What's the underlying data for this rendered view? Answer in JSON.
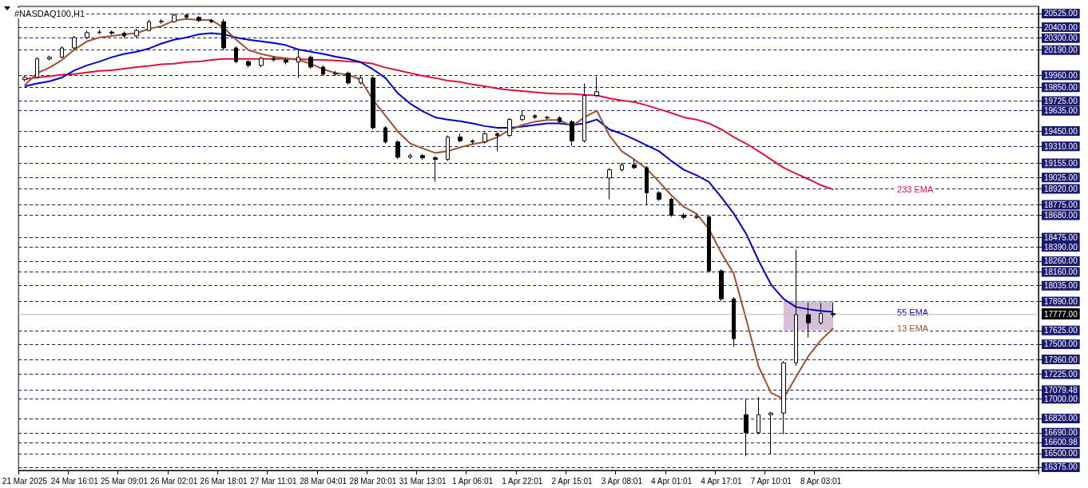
{
  "chart_data": {
    "type": "candlestick",
    "title": "#NASDAQ100,H1",
    "categories": [
      "21 Mar 2025",
      null,
      null,
      null,
      "24 Mar 16:01",
      null,
      null,
      null,
      "25 Mar 09:01",
      null,
      null,
      null,
      "26 Mar 02:01",
      null,
      null,
      null,
      "26 Mar 18:01",
      null,
      null,
      null,
      "27 Mar 11:01",
      null,
      null,
      null,
      "28 Mar 04:01",
      null,
      null,
      null,
      "28 Mar 20:01",
      null,
      null,
      null,
      "31 Mar 13:01",
      null,
      null,
      null,
      "1 Apr 06:01",
      null,
      null,
      null,
      "1 Apr 22:01",
      null,
      null,
      null,
      "2 Apr 15:01",
      null,
      null,
      null,
      "3 Apr 08:01",
      null,
      null,
      null,
      "4 Apr 01:01",
      null,
      null,
      null,
      "4 Apr 17:01",
      null,
      null,
      null,
      "7 Apr 10:01",
      null,
      null,
      null,
      "8 Apr 03:01",
      null,
      null,
      null,
      null,
      null,
      null,
      null,
      null,
      null,
      null,
      null,
      null,
      null,
      null,
      null,
      null,
      null
    ],
    "ohlc": [
      [
        19920,
        19955,
        19905,
        19940
      ],
      [
        19940,
        20125,
        19930,
        20110
      ],
      [
        20110,
        20140,
        20095,
        20125
      ],
      [
        20125,
        20225,
        20115,
        20210
      ],
      [
        20210,
        20320,
        20195,
        20305
      ],
      [
        20305,
        20370,
        20290,
        20350
      ],
      [
        20350,
        20375,
        20335,
        20355
      ],
      [
        20355,
        20370,
        20330,
        20345
      ],
      [
        20345,
        20360,
        20300,
        20320
      ],
      [
        20320,
        20385,
        20305,
        20370
      ],
      [
        20370,
        20470,
        20360,
        20450
      ],
      [
        20450,
        20475,
        20430,
        20455
      ],
      [
        20450,
        20525,
        20440,
        20510
      ],
      [
        20510,
        20520,
        20475,
        20490
      ],
      [
        20490,
        20500,
        20445,
        20460
      ],
      [
        20460,
        20475,
        20435,
        20450
      ],
      [
        20450,
        20475,
        20190,
        20210
      ],
      [
        20210,
        20225,
        20070,
        20085
      ],
      [
        20085,
        20100,
        20030,
        20050
      ],
      [
        20050,
        20130,
        20035,
        20115
      ],
      [
        20115,
        20135,
        20085,
        20100
      ],
      [
        20100,
        20115,
        20060,
        20080
      ],
      [
        20080,
        20195,
        19935,
        20125
      ],
      [
        20125,
        20140,
        20020,
        20035
      ],
      [
        20035,
        20050,
        19955,
        19970
      ],
      [
        19970,
        20000,
        19955,
        19980
      ],
      [
        19980,
        19995,
        19875,
        19890
      ],
      [
        19890,
        19955,
        19875,
        19935
      ],
      [
        19935,
        19950,
        19465,
        19480
      ],
      [
        19480,
        19495,
        19335,
        19350
      ],
      [
        19350,
        19365,
        19195,
        19210
      ],
      [
        19210,
        19245,
        19195,
        19225
      ],
      [
        19225,
        19240,
        19185,
        19205
      ],
      [
        19205,
        19220,
        18985,
        19190
      ],
      [
        19190,
        19410,
        19175,
        19395
      ],
      [
        19395,
        19425,
        19345,
        19360
      ],
      [
        19360,
        19375,
        19330,
        19350
      ],
      [
        19350,
        19440,
        19335,
        19425
      ],
      [
        19425,
        19440,
        19265,
        19410
      ],
      [
        19410,
        19570,
        19395,
        19555
      ],
      [
        19555,
        19640,
        19540,
        19590
      ],
      [
        19590,
        19605,
        19560,
        19575
      ],
      [
        19575,
        19590,
        19555,
        19570
      ],
      [
        19570,
        19585,
        19520,
        19535
      ],
      [
        19535,
        19550,
        19315,
        19360
      ],
      [
        19360,
        19885,
        19345,
        19775
      ],
      [
        19775,
        19950,
        19760,
        19810
      ],
      [
        19020,
        19110,
        18825,
        19095
      ],
      [
        19095,
        19160,
        19080,
        19140
      ],
      [
        19140,
        19190,
        19100,
        19115
      ],
      [
        19115,
        19130,
        18775,
        18885
      ],
      [
        18885,
        18900,
        18810,
        18825
      ],
      [
        18825,
        18840,
        18665,
        18680
      ],
      [
        18680,
        18700,
        18645,
        18660
      ],
      [
        18660,
        18690,
        18645,
        18665
      ],
      [
        18665,
        18680,
        18155,
        18170
      ],
      [
        18170,
        18185,
        17895,
        17915
      ],
      [
        17915,
        17930,
        17475,
        17550
      ],
      [
        16855,
        17000,
        16475,
        16690
      ],
      [
        16690,
        17015,
        16675,
        16855
      ],
      [
        16855,
        16880,
        16490,
        16870
      ],
      [
        16870,
        17345,
        16675,
        17330
      ],
      [
        17330,
        18365,
        17300,
        17770
      ],
      [
        17770,
        17880,
        17560,
        17695
      ],
      [
        17695,
        17875,
        17680,
        17780
      ],
      [
        17780,
        17880,
        17745,
        17770
      ],
      null,
      null,
      null,
      null,
      null,
      null,
      null,
      null,
      null,
      null,
      null,
      null,
      null,
      null,
      null,
      null
    ],
    "series": [
      {
        "name": "233 EMA",
        "type": "line",
        "color": "#dc143c",
        "values": [
          19925,
          19940,
          19950,
          19965,
          19970,
          19985,
          20000,
          20005,
          20020,
          20035,
          20045,
          20060,
          20065,
          20080,
          20085,
          20100,
          20110,
          20110,
          20110,
          20110,
          20110,
          20110,
          20110,
          20100,
          20100,
          20095,
          20085,
          20080,
          20065,
          20030,
          20005,
          19980,
          19955,
          19935,
          19910,
          19900,
          19875,
          19860,
          19840,
          19825,
          19815,
          19805,
          19795,
          19790,
          19790,
          19780,
          19775,
          19750,
          19730,
          19715,
          19685,
          19650,
          19615,
          19575,
          19555,
          19520,
          19465,
          19395,
          19335,
          19265,
          19190,
          19115,
          19060,
          19010,
          18955,
          18915,
          null,
          null,
          null,
          null,
          null,
          null,
          null,
          null,
          null,
          null,
          null,
          null,
          null,
          null,
          null,
          null
        ]
      },
      {
        "name": "55 EMA",
        "type": "line",
        "color": "#0000cd",
        "values": [
          19860,
          19885,
          19905,
          19940,
          20005,
          20050,
          20085,
          20125,
          20155,
          20175,
          20205,
          20250,
          20285,
          20305,
          20335,
          20345,
          20335,
          20305,
          20285,
          20270,
          20255,
          20235,
          20195,
          20175,
          20155,
          20130,
          20110,
          20080,
          20015,
          19935,
          19795,
          19700,
          19630,
          19575,
          19555,
          19540,
          19520,
          19495,
          19480,
          19480,
          19490,
          19505,
          19520,
          19520,
          19505,
          19520,
          19555,
          19465,
          19425,
          19375,
          19320,
          19265,
          19175,
          19095,
          19045,
          18985,
          18845,
          18695,
          18510,
          18265,
          18045,
          17915,
          17840,
          17820,
          17805,
          17795,
          null,
          null,
          null,
          null,
          null,
          null,
          null,
          null,
          null,
          null,
          null,
          null,
          null,
          null,
          null,
          null
        ]
      },
      {
        "name": "13 EMA",
        "type": "line",
        "color": "#a0522d",
        "values": [
          19870,
          19980,
          20030,
          20100,
          20195,
          20270,
          20305,
          20320,
          20335,
          20345,
          20385,
          20410,
          20460,
          20475,
          20465,
          20465,
          20395,
          20285,
          20190,
          20155,
          20130,
          20115,
          20100,
          20065,
          20015,
          19980,
          19965,
          19920,
          19735,
          19590,
          19445,
          19335,
          19290,
          19250,
          19265,
          19300,
          19330,
          19350,
          19395,
          19460,
          19505,
          19535,
          19550,
          19550,
          19495,
          19575,
          19635,
          19410,
          19265,
          19190,
          19105,
          18985,
          18860,
          18755,
          18695,
          18555,
          18335,
          18145,
          17730,
          17295,
          17055,
          17000,
          17200,
          17390,
          17535,
          17645,
          null,
          null,
          null,
          null,
          null,
          null,
          null,
          null,
          null,
          null,
          null,
          null,
          null,
          null,
          null,
          null
        ]
      }
    ],
    "ylim": [
      16345,
      20590
    ],
    "yticks": [
      {
        "value": 20525,
        "label": "20525.00"
      },
      {
        "value": 20400,
        "label": "20400.00"
      },
      {
        "value": 20300,
        "label": "20300.00"
      },
      {
        "value": 20190,
        "label": "20190.00"
      },
      {
        "value": 19960,
        "label": "19960.00"
      },
      {
        "value": 19850,
        "label": "19850.00"
      },
      {
        "value": 19725,
        "label": "19725.00"
      },
      {
        "value": 19635,
        "label": "19635.00"
      },
      {
        "value": 19450,
        "label": "19450.00"
      },
      {
        "value": 19310,
        "label": "19310.00"
      },
      {
        "value": 19155,
        "label": "19155.00"
      },
      {
        "value": 19025,
        "label": "19025.00"
      },
      {
        "value": 18920,
        "label": "18920.00"
      },
      {
        "value": 18775,
        "label": "18775.00"
      },
      {
        "value": 18680,
        "label": "18680.00"
      },
      {
        "value": 18475,
        "label": "18475.00"
      },
      {
        "value": 18390,
        "label": "18390.00"
      },
      {
        "value": 18260,
        "label": "18260.00"
      },
      {
        "value": 18160,
        "label": "18160.00"
      },
      {
        "value": 18035,
        "label": "18035.00"
      },
      {
        "value": 17890,
        "label": "17890.00"
      },
      {
        "value": 17625,
        "label": "17625.00"
      },
      {
        "value": 17500,
        "label": "17500.00"
      },
      {
        "value": 17360,
        "label": "17360.00"
      },
      {
        "value": 17225,
        "label": "17225.00"
      },
      {
        "value": 17079.48,
        "label": "17079.48"
      },
      {
        "value": 17000,
        "label": "17000.00"
      },
      {
        "value": 16820,
        "label": "16820.00"
      },
      {
        "value": 16690,
        "label": "16690.00"
      },
      {
        "value": 16600.98,
        "label": "16600.98"
      },
      {
        "value": 16500,
        "label": "16500.00"
      },
      {
        "value": 16375,
        "label": "16375.00"
      }
    ],
    "ref_lines": [
      {
        "axis": "y",
        "value": 17777,
        "label": "17777.00",
        "color": "#c0c0c0"
      }
    ],
    "bands": [
      {
        "axis": "y",
        "from": 17630,
        "to": 17890,
        "color": "#d8bfd8"
      }
    ],
    "grid": "y",
    "legend": false,
    "marker": "none"
  }
}
